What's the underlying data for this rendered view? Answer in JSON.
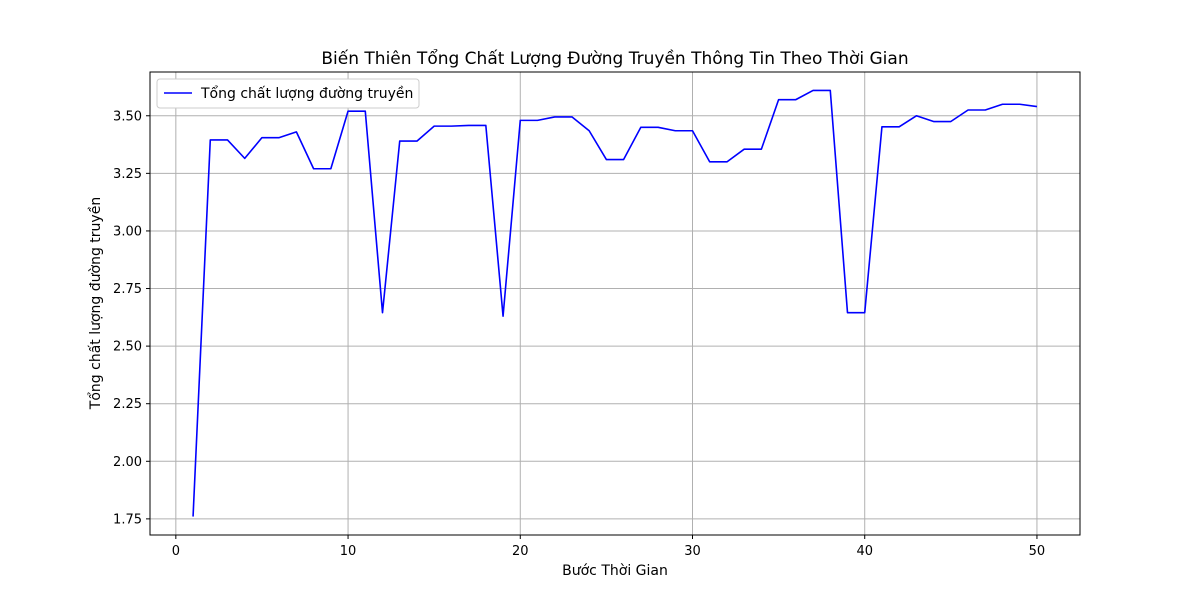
{
  "chart_data": {
    "type": "line",
    "title": "Biến Thiên Tổng Chất Lượng Đường Truyền Thông Tin Theo Thời Gian",
    "xlabel": "Bước Thời Gian",
    "ylabel": "Tổng chất lượng đường truyền",
    "xlim": [
      -1.5,
      52.5
    ],
    "ylim": [
      1.68,
      3.69
    ],
    "xticks": [
      0,
      10,
      20,
      30,
      40,
      50
    ],
    "yticks": [
      1.75,
      2.0,
      2.25,
      2.5,
      2.75,
      3.0,
      3.25,
      3.5
    ],
    "grid": true,
    "legend_position": "top-left",
    "series": [
      {
        "name": "Tổng chất lượng đường truyền",
        "color": "#0000ff",
        "x": [
          1,
          2,
          3,
          4,
          5,
          6,
          7,
          8,
          9,
          10,
          11,
          12,
          13,
          14,
          15,
          16,
          17,
          18,
          19,
          20,
          21,
          22,
          23,
          24,
          25,
          26,
          27,
          28,
          29,
          30,
          31,
          32,
          33,
          34,
          35,
          36,
          37,
          38,
          39,
          40,
          41,
          42,
          43,
          44,
          45,
          46,
          47,
          48,
          49,
          50
        ],
        "values": [
          1.76,
          3.395,
          3.395,
          3.315,
          3.405,
          3.405,
          3.43,
          3.27,
          3.27,
          3.52,
          3.52,
          2.645,
          3.39,
          3.39,
          3.455,
          3.455,
          3.458,
          3.458,
          2.63,
          3.48,
          3.48,
          3.495,
          3.495,
          3.435,
          3.31,
          3.31,
          3.45,
          3.45,
          3.435,
          3.435,
          3.3,
          3.3,
          3.355,
          3.355,
          3.57,
          3.57,
          3.61,
          3.61,
          2.645,
          2.645,
          3.452,
          3.452,
          3.5,
          3.475,
          3.475,
          3.525,
          3.525,
          3.55,
          3.55,
          3.54
        ]
      }
    ]
  }
}
